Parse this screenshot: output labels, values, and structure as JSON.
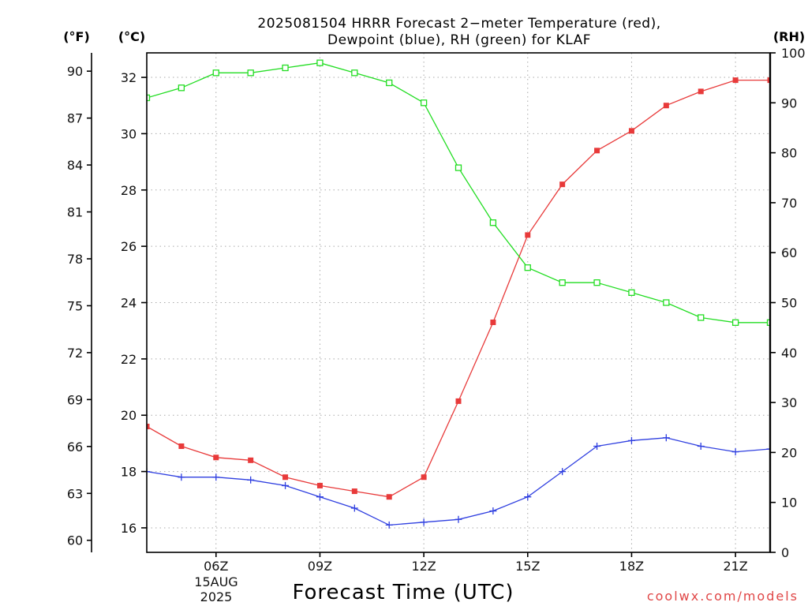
{
  "chart_data": {
    "type": "line",
    "title": [
      "2025081504 HRRR Forecast 2−meter Temperature (red),",
      "Dewpoint (blue), RH (green) for KLAF"
    ],
    "xlabel": "Forecast Time (UTC)",
    "x_date": [
      "15AUG",
      "2025"
    ],
    "x": [
      4,
      5,
      6,
      7,
      8,
      9,
      10,
      11,
      12,
      13,
      14,
      15,
      16,
      17,
      18,
      19,
      20,
      21,
      22
    ],
    "xlim": [
      4,
      22
    ],
    "xticks": [
      {
        "value": 6,
        "label": "06Z"
      },
      {
        "value": 9,
        "label": "09Z"
      },
      {
        "value": 12,
        "label": "12Z"
      },
      {
        "value": 15,
        "label": "15Z"
      },
      {
        "value": 18,
        "label": "18Z"
      },
      {
        "value": 21,
        "label": "21Z"
      }
    ],
    "grid": true,
    "axes": {
      "fahrenheit": {
        "label": "(°F)",
        "ylim": [
          59.23,
          91.17
        ],
        "ticks": [
          60,
          63,
          66,
          69,
          72,
          75,
          78,
          81,
          84,
          87,
          90
        ]
      },
      "celsius": {
        "label": "(°C)",
        "ylim": [
          15.13,
          32.87
        ],
        "ticks": [
          16,
          18,
          20,
          22,
          24,
          26,
          28,
          30,
          32
        ],
        "series": [
          {
            "color": "#e83a3a",
            "marker": "filled-square",
            "values": [
              19.6,
              18.9,
              18.5,
              18.4,
              17.8,
              17.5,
              17.3,
              17.1,
              17.8,
              20.5,
              23.3,
              26.4,
              28.2,
              29.4,
              30.1,
              31.0,
              31.5,
              31.9,
              31.9
            ]
          },
          {
            "color": "#2f3fe0",
            "marker": "plus",
            "values": [
              18.0,
              17.8,
              17.8,
              17.7,
              17.5,
              17.1,
              16.7,
              16.1,
              16.2,
              16.3,
              16.6,
              17.1,
              18.0,
              18.9,
              19.1,
              19.2,
              18.9,
              18.7,
              18.8
            ]
          }
        ]
      },
      "rh": {
        "label": "(RH)",
        "ylim": [
          0,
          100
        ],
        "ticks": [
          0,
          10,
          20,
          30,
          40,
          50,
          60,
          70,
          80,
          90,
          100
        ],
        "series": [
          {
            "color": "#22dd22",
            "marker": "hollow-square",
            "values": [
              91,
              93,
              96,
              96,
              97,
              98,
              96,
              94,
              90,
              77,
              66,
              57,
              54,
              54,
              52,
              50,
              47,
              46,
              46
            ]
          }
        ]
      }
    }
  },
  "watermark": "coolwx.com/models"
}
